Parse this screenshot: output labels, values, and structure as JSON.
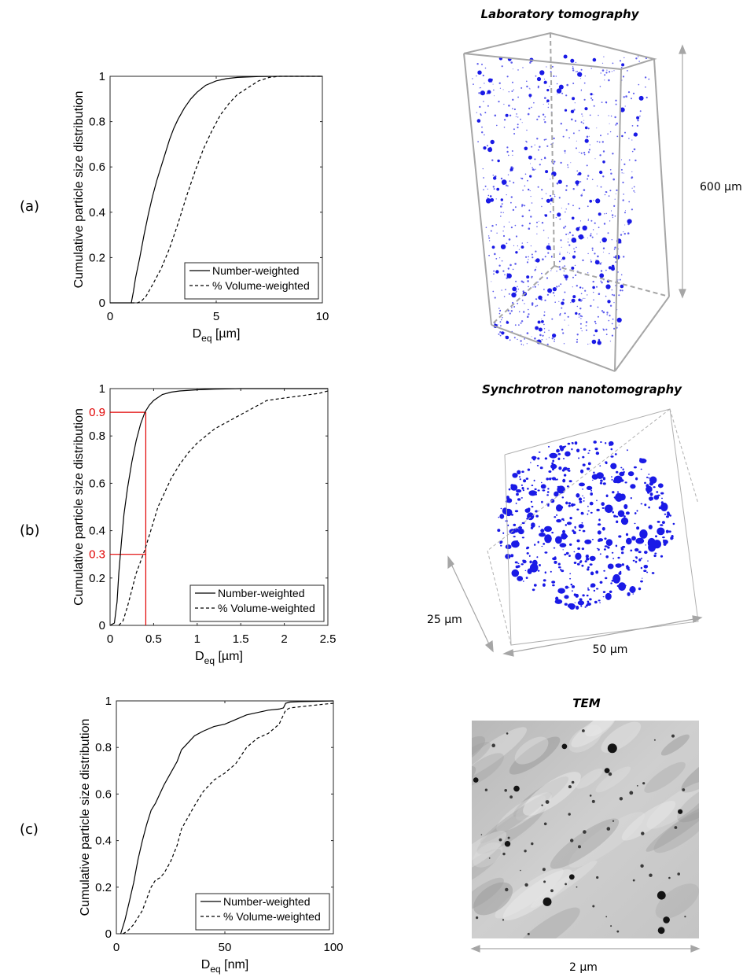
{
  "panels": {
    "a": {
      "label": "(a)",
      "title": "Laboratory tomography",
      "scale_label": "600 µm"
    },
    "b": {
      "label": "(b)",
      "title": "Synchrotron nanotomography",
      "scale_depth_label": "25 µm",
      "scale_width_label": "50 µm"
    },
    "c": {
      "label": "(c)",
      "title": "TEM",
      "scale_label": "2 µm"
    }
  },
  "colors": {
    "particles": "#1a1ae6",
    "box": "#a0a0a0",
    "annotation": "#e00000"
  },
  "chart_data": [
    {
      "type": "line",
      "xlabel_main": "D",
      "xlabel_sub": "eq",
      "xlabel_unit": "[µm]",
      "ylabel": "Cumulative particle size distribution",
      "xlim": [
        0,
        10
      ],
      "ylim": [
        0,
        1
      ],
      "xticks": [
        0,
        5,
        10
      ],
      "xtick_labels": [
        "0",
        "5",
        "10"
      ],
      "yticks": [
        0,
        0.2,
        0.4,
        0.6,
        0.8,
        1
      ],
      "ytick_labels": [
        "0",
        "0.2",
        "0.4",
        "0.6",
        "0.8",
        "1"
      ],
      "legend": [
        "Number-weighted",
        "% Volume-weighted"
      ],
      "legend_position": "bottom-right",
      "series": [
        {
          "name": "Number-weighted",
          "style": "solid",
          "x": [
            0,
            1.0,
            1.1,
            1.2,
            1.4,
            1.6,
            1.8,
            2.0,
            2.2,
            2.4,
            2.6,
            2.8,
            3.0,
            3.2,
            3.5,
            3.8,
            4.1,
            4.5,
            5.0,
            5.5,
            6.0,
            7.0,
            8.0,
            10.0
          ],
          "y": [
            0,
            0,
            0.05,
            0.11,
            0.2,
            0.3,
            0.39,
            0.47,
            0.54,
            0.6,
            0.66,
            0.72,
            0.77,
            0.81,
            0.86,
            0.9,
            0.93,
            0.96,
            0.98,
            0.99,
            0.995,
            0.999,
            1.0,
            1.0
          ]
        },
        {
          "name": "% Volume-weighted",
          "style": "dashed",
          "x": [
            1.0,
            1.3,
            1.5,
            1.7,
            2.0,
            2.4,
            2.8,
            3.2,
            3.6,
            4.0,
            4.4,
            4.8,
            5.2,
            5.6,
            6.0,
            6.5,
            7.0,
            7.5,
            8.0,
            9.0,
            10.0
          ],
          "y": [
            0,
            0,
            0.01,
            0.03,
            0.08,
            0.15,
            0.24,
            0.35,
            0.47,
            0.58,
            0.68,
            0.76,
            0.83,
            0.88,
            0.92,
            0.95,
            0.98,
            0.995,
            1.0,
            1.0,
            1.0
          ]
        }
      ]
    },
    {
      "type": "line",
      "xlabel_main": "D",
      "xlabel_sub": "eq",
      "xlabel_unit": "[µm]",
      "ylabel": "Cumulative particle size distribution",
      "xlim": [
        0,
        2.5
      ],
      "ylim": [
        0,
        1
      ],
      "xticks": [
        0,
        0.5,
        1,
        1.5,
        2,
        2.5
      ],
      "xtick_labels": [
        "0",
        "0.5",
        "1",
        "1.5",
        "2",
        "2.5"
      ],
      "yticks": [
        0,
        0.2,
        0.4,
        0.6,
        0.8,
        1
      ],
      "ytick_labels": [
        "0",
        "0.2",
        "0.4",
        "0.6",
        "0.8",
        "1"
      ],
      "legend": [
        "Number-weighted",
        "% Volume-weighted"
      ],
      "legend_position": "bottom-right",
      "annotations": [
        {
          "value": 0.9,
          "label": "0.9",
          "x_value": 0.41
        },
        {
          "value": 0.3,
          "label": "0.3",
          "x_value": 0.41
        }
      ],
      "series": [
        {
          "name": "Number-weighted",
          "style": "solid",
          "x": [
            0,
            0.05,
            0.08,
            0.1,
            0.13,
            0.16,
            0.2,
            0.25,
            0.3,
            0.35,
            0.4,
            0.45,
            0.5,
            0.6,
            0.7,
            0.8,
            1.0,
            1.2,
            1.5,
            2.0,
            2.5
          ],
          "y": [
            0,
            0.01,
            0.1,
            0.22,
            0.35,
            0.47,
            0.58,
            0.69,
            0.78,
            0.85,
            0.9,
            0.93,
            0.95,
            0.975,
            0.985,
            0.99,
            0.995,
            0.998,
            1.0,
            1.0,
            1.0
          ]
        },
        {
          "name": "% Volume-weighted",
          "style": "dashed",
          "x": [
            0.1,
            0.15,
            0.2,
            0.25,
            0.3,
            0.35,
            0.4,
            0.45,
            0.5,
            0.55,
            0.6,
            0.65,
            0.7,
            0.8,
            0.9,
            1.0,
            1.1,
            1.2,
            1.3,
            1.4,
            1.5,
            1.6,
            1.7,
            1.8,
            2.0,
            2.2,
            2.4,
            2.5
          ],
          "y": [
            0,
            0.02,
            0.08,
            0.15,
            0.22,
            0.27,
            0.32,
            0.38,
            0.44,
            0.5,
            0.54,
            0.58,
            0.62,
            0.68,
            0.73,
            0.77,
            0.8,
            0.83,
            0.85,
            0.87,
            0.89,
            0.91,
            0.93,
            0.95,
            0.96,
            0.97,
            0.98,
            0.99
          ]
        }
      ]
    },
    {
      "type": "line",
      "xlabel_main": "D",
      "xlabel_sub": "eq",
      "xlabel_unit": "[nm]",
      "ylabel": "Cumulative particle size distribution",
      "xlim": [
        0,
        100
      ],
      "ylim": [
        0,
        1
      ],
      "xticks": [
        0,
        50,
        100
      ],
      "xtick_labels": [
        "0",
        "50",
        "100"
      ],
      "yticks": [
        0,
        0.2,
        0.4,
        0.6,
        0.8,
        1
      ],
      "ytick_labels": [
        "0",
        "0.2",
        "0.4",
        "0.6",
        "0.8",
        "1"
      ],
      "legend": [
        "Number-weighted",
        "% Volume-weighted"
      ],
      "legend_position": "bottom-right",
      "series": [
        {
          "name": "Number-weighted",
          "style": "solid",
          "x": [
            2,
            3,
            4,
            5,
            6,
            7,
            8,
            9,
            10,
            12,
            14,
            16,
            18,
            20,
            22,
            25,
            28,
            30,
            33,
            36,
            40,
            45,
            50,
            55,
            60,
            65,
            70,
            75,
            77,
            78,
            80,
            85,
            90,
            100
          ],
          "y": [
            0,
            0.03,
            0.06,
            0.1,
            0.14,
            0.18,
            0.22,
            0.27,
            0.32,
            0.4,
            0.47,
            0.53,
            0.56,
            0.6,
            0.64,
            0.69,
            0.74,
            0.79,
            0.82,
            0.85,
            0.87,
            0.89,
            0.9,
            0.92,
            0.94,
            0.95,
            0.96,
            0.965,
            0.97,
            0.99,
            0.995,
            0.997,
            0.998,
            1.0
          ]
        },
        {
          "name": "% Volume-weighted",
          "style": "dashed",
          "x": [
            3,
            5,
            8,
            10,
            12,
            14,
            16,
            18,
            20,
            22,
            25,
            28,
            30,
            33,
            36,
            40,
            45,
            50,
            55,
            60,
            65,
            70,
            75,
            78,
            80,
            85,
            90,
            95,
            100
          ],
          "y": [
            0,
            0.01,
            0.04,
            0.07,
            0.1,
            0.15,
            0.2,
            0.23,
            0.24,
            0.26,
            0.31,
            0.38,
            0.45,
            0.5,
            0.55,
            0.61,
            0.66,
            0.69,
            0.73,
            0.8,
            0.84,
            0.86,
            0.9,
            0.96,
            0.97,
            0.975,
            0.98,
            0.985,
            0.99
          ]
        }
      ]
    }
  ]
}
